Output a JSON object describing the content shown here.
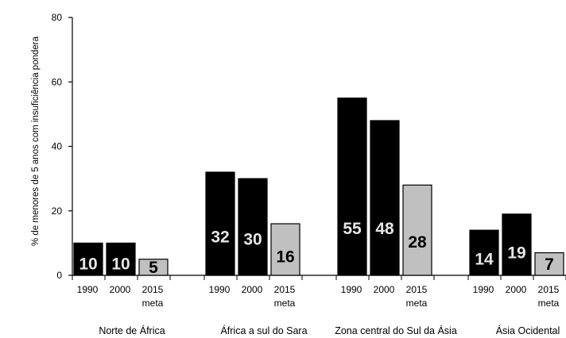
{
  "chart_data": {
    "type": "bar",
    "title": "",
    "ylabel": "% de menores de 5 anos com insuficiência pondera",
    "xlabel": "",
    "ylim": [
      0,
      80
    ],
    "yticks": [
      0,
      20,
      40,
      60,
      80
    ],
    "grid": false,
    "legend": "none",
    "colors": {
      "actual": "#000000",
      "target": "#c0c0c0",
      "actual_label": "#e6e6e6",
      "target_label": "#000000"
    },
    "groups": [
      {
        "name": "Norte de África",
        "bars": [
          {
            "category": "1990",
            "value": 10,
            "kind": "actual"
          },
          {
            "category": "2000",
            "value": 10,
            "kind": "actual"
          },
          {
            "category": "2015",
            "sublabel": "meta",
            "value": 5,
            "kind": "target"
          }
        ]
      },
      {
        "name": "África a sul do Sara",
        "bars": [
          {
            "category": "1990",
            "value": 32,
            "kind": "actual"
          },
          {
            "category": "2000",
            "value": 30,
            "kind": "actual"
          },
          {
            "category": "2015",
            "sublabel": "meta",
            "value": 16,
            "kind": "target"
          }
        ]
      },
      {
        "name": "Zona central do Sul da Ásia",
        "bars": [
          {
            "category": "1990",
            "value": 55,
            "kind": "actual"
          },
          {
            "category": "2000",
            "value": 48,
            "kind": "actual"
          },
          {
            "category": "2015",
            "sublabel": "meta",
            "value": 28,
            "kind": "target"
          }
        ]
      },
      {
        "name": "Ásia Ocidental",
        "bars": [
          {
            "category": "1990",
            "value": 14,
            "kind": "actual"
          },
          {
            "category": "2000",
            "value": 19,
            "kind": "actual"
          },
          {
            "category": "2015",
            "sublabel": "meta",
            "value": 7,
            "kind": "target"
          }
        ]
      }
    ]
  }
}
